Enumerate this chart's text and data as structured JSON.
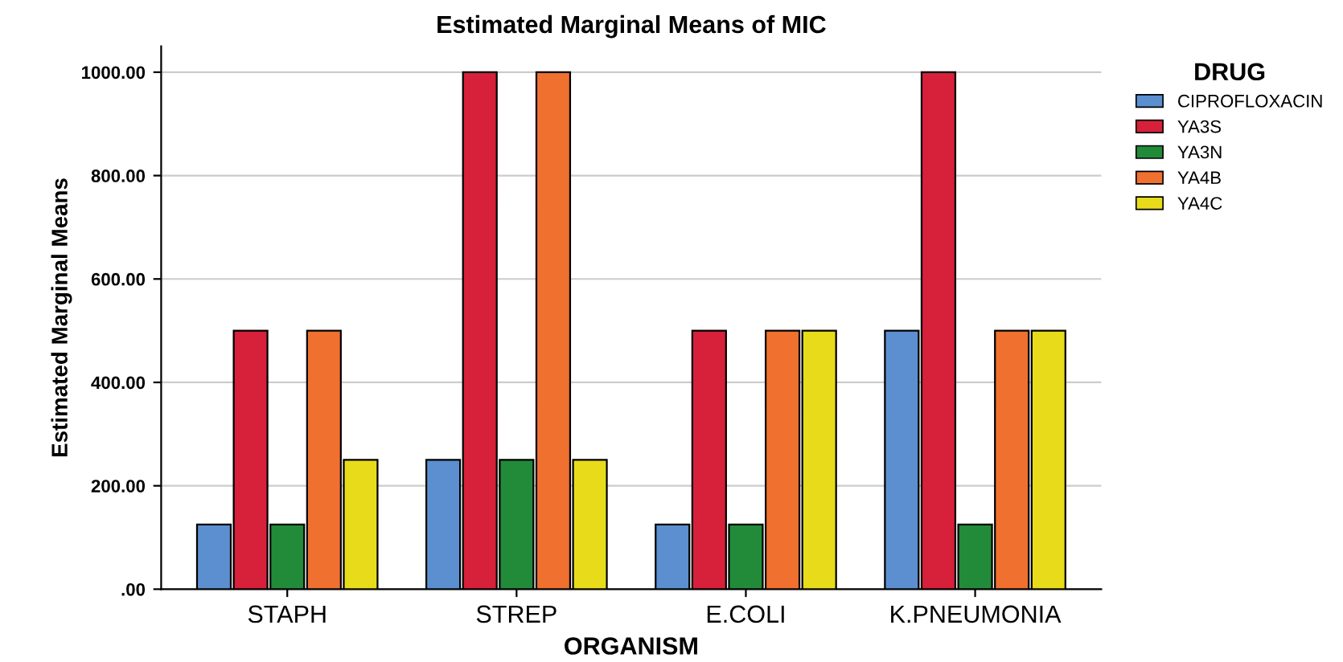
{
  "chart_data": {
    "type": "bar",
    "title": "Estimated Marginal Means of MIC",
    "xlabel": "ORGANISM",
    "ylabel": "Estimated Marginal Means",
    "legend_title": "DRUG",
    "categories": [
      "STAPH",
      "STREP",
      "E.COLI",
      "K.PNEUMONIA"
    ],
    "series": [
      {
        "name": "CIPROFLOXACIN",
        "color": "#5b8fd0",
        "values": [
          125,
          250,
          125,
          500
        ]
      },
      {
        "name": "YA3S",
        "color": "#d7203a",
        "values": [
          500,
          1000,
          500,
          1000
        ]
      },
      {
        "name": "YA3N",
        "color": "#228b3a",
        "values": [
          125,
          250,
          125,
          125
        ]
      },
      {
        "name": "YA4B",
        "color": "#f07030",
        "values": [
          500,
          1000,
          500,
          500
        ]
      },
      {
        "name": "YA4C",
        "color": "#e8dc1a",
        "values": [
          250,
          250,
          500,
          500
        ]
      }
    ],
    "ylim": [
      0,
      1050
    ],
    "yticks": [
      {
        "value": 0,
        "label": ".00"
      },
      {
        "value": 200,
        "label": "200.00"
      },
      {
        "value": 400,
        "label": "400.00"
      },
      {
        "value": 600,
        "label": "600.00"
      },
      {
        "value": 800,
        "label": "800.00"
      },
      {
        "value": 1000,
        "label": "1000.00"
      }
    ],
    "grid": "y",
    "legend": "right"
  }
}
